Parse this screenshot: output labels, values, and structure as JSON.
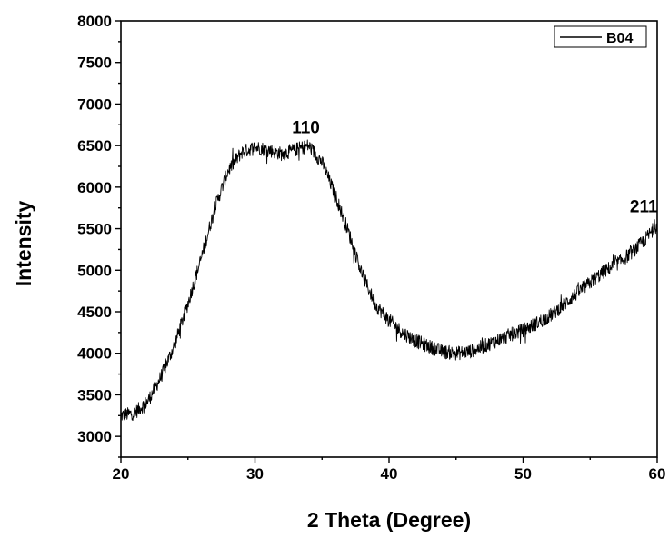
{
  "chart_data": {
    "type": "line",
    "title": "",
    "xlabel": "2 Theta (Degree)",
    "ylabel": "Intensity",
    "xlim": [
      20,
      60
    ],
    "ylim": [
      2750,
      8000
    ],
    "x_ticks": [
      20,
      30,
      40,
      50,
      60
    ],
    "y_ticks": [
      3000,
      3500,
      4000,
      4500,
      5000,
      5500,
      6000,
      6500,
      7000,
      7500,
      8000
    ],
    "grid": false,
    "legend": {
      "position": "top-right",
      "entries": [
        "B04"
      ]
    },
    "series": [
      {
        "name": "B04",
        "color": "#000000",
        "x": [
          20,
          21,
          22,
          23,
          24,
          25,
          26,
          27,
          28,
          29,
          30,
          31,
          32,
          33,
          34,
          35,
          36,
          37,
          38,
          39,
          40,
          41,
          42,
          43,
          44,
          45,
          46,
          47,
          48,
          49,
          50,
          51,
          52,
          53,
          54,
          55,
          56,
          57,
          58,
          59,
          60
        ],
        "y": [
          3250,
          3280,
          3420,
          3720,
          4100,
          4600,
          5150,
          5750,
          6200,
          6420,
          6480,
          6450,
          6400,
          6450,
          6500,
          6300,
          5900,
          5450,
          4950,
          4580,
          4400,
          4250,
          4150,
          4080,
          4020,
          4000,
          4020,
          4080,
          4150,
          4220,
          4280,
          4360,
          4450,
          4580,
          4720,
          4850,
          4980,
          5080,
          5200,
          5350,
          5550
        ]
      }
    ],
    "annotations": [
      {
        "text": "110",
        "x": 33.8,
        "y": 6650
      },
      {
        "text": "211",
        "x": 59.0,
        "y": 5700
      }
    ]
  }
}
